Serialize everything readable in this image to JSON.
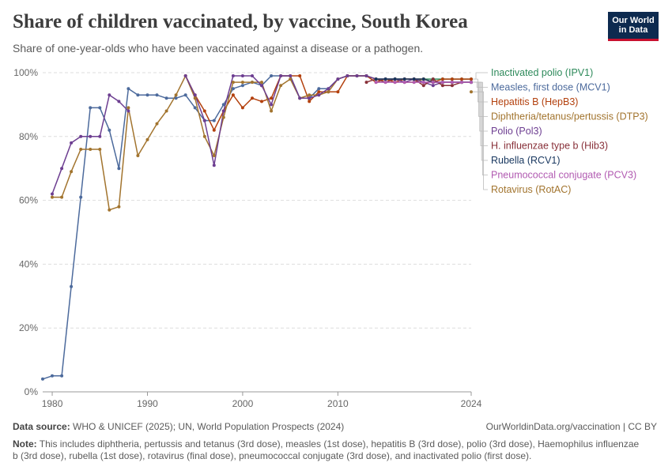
{
  "header": {
    "title": "Share of children vaccinated, by vaccine, South Korea",
    "subtitle": "Share of one-year-olds who have been vaccinated against a disease or a pathogen.",
    "logo_line1": "Our World",
    "logo_line2": "in Data"
  },
  "footer": {
    "source_label": "Data source:",
    "source_text": "WHO & UNICEF (2025); UN, World Population Prospects (2024)",
    "license": "OurWorldinData.org/vaccination | CC BY",
    "note_label": "Note:",
    "note_text": "This includes diphtheria, pertussis and tetanus (3rd dose), measles (1st dose), hepatitis B (3rd dose), polio (3rd dose), Haemophilus influenzae b (3rd dose), rubella (1st dose), rotavirus (final dose), pneumococcal conjugate (3rd dose), and inactivated polio (first dose)."
  },
  "chart_data": {
    "type": "line",
    "xlim": [
      1979,
      2024
    ],
    "ylim": [
      0,
      100
    ],
    "x_ticks": [
      "1980",
      "1990",
      "2000",
      "2010",
      "2024"
    ],
    "x_tick_values": [
      1980,
      1990,
      2000,
      2010,
      2024
    ],
    "y_ticks": [
      "0%",
      "20%",
      "40%",
      "60%",
      "80%",
      "100%"
    ],
    "y_tick_values": [
      0,
      20,
      40,
      60,
      80,
      100
    ],
    "grid": "horizontal dashed",
    "legend_placement": "right",
    "series": [
      {
        "name": "Inactivated polio (IPV1)",
        "color": "#2e8a5b",
        "points": [
          [
            2015,
            98
          ],
          [
            2016,
            98
          ],
          [
            2017,
            98
          ],
          [
            2018,
            98
          ],
          [
            2019,
            98
          ],
          [
            2020,
            98
          ],
          [
            2021,
            98
          ],
          [
            2022,
            98
          ],
          [
            2023,
            98
          ],
          [
            2024,
            98
          ]
        ]
      },
      {
        "name": "Measles, first dose (MCV1)",
        "color": "#4c6a9c",
        "points": [
          [
            1979,
            4
          ],
          [
            1980,
            5
          ],
          [
            1981,
            5
          ],
          [
            1982,
            33
          ],
          [
            1983,
            61
          ],
          [
            1984,
            89
          ],
          [
            1985,
            89
          ],
          [
            1986,
            82
          ],
          [
            1987,
            70
          ],
          [
            1988,
            95
          ],
          [
            1989,
            93
          ],
          [
            1990,
            93
          ],
          [
            1991,
            93
          ],
          [
            1992,
            92
          ],
          [
            1993,
            92
          ],
          [
            1994,
            93
          ],
          [
            1995,
            89
          ],
          [
            1996,
            85
          ],
          [
            1997,
            85
          ],
          [
            1998,
            90
          ],
          [
            1999,
            95
          ],
          [
            2000,
            96
          ],
          [
            2001,
            97
          ],
          [
            2002,
            96
          ],
          [
            2003,
            99
          ],
          [
            2004,
            99
          ],
          [
            2005,
            99
          ],
          [
            2006,
            92
          ],
          [
            2007,
            92
          ],
          [
            2008,
            95
          ],
          [
            2009,
            95
          ],
          [
            2010,
            98
          ],
          [
            2011,
            99
          ],
          [
            2012,
            99
          ],
          [
            2013,
            99
          ],
          [
            2014,
            98
          ],
          [
            2015,
            98
          ],
          [
            2016,
            98
          ],
          [
            2017,
            98
          ],
          [
            2018,
            98
          ],
          [
            2019,
            98
          ],
          [
            2020,
            97
          ],
          [
            2021,
            97
          ],
          [
            2022,
            97
          ],
          [
            2023,
            97
          ],
          [
            2024,
            97
          ]
        ]
      },
      {
        "name": "Hepatitis B (HepB3)",
        "color": "#b3410e",
        "points": [
          [
            1994,
            99
          ],
          [
            1995,
            93
          ],
          [
            1996,
            88
          ],
          [
            1997,
            82
          ],
          [
            1998,
            88
          ],
          [
            1999,
            93
          ],
          [
            2000,
            89
          ],
          [
            2001,
            92
          ],
          [
            2002,
            91
          ],
          [
            2003,
            92
          ],
          [
            2004,
            99
          ],
          [
            2005,
            99
          ],
          [
            2006,
            99
          ],
          [
            2007,
            91
          ],
          [
            2008,
            94
          ],
          [
            2009,
            94
          ],
          [
            2010,
            94
          ],
          [
            2011,
            99
          ],
          [
            2012,
            99
          ],
          [
            2013,
            99
          ],
          [
            2014,
            97
          ],
          [
            2015,
            98
          ],
          [
            2016,
            97
          ],
          [
            2017,
            98
          ],
          [
            2018,
            98
          ],
          [
            2019,
            98
          ],
          [
            2020,
            97
          ],
          [
            2021,
            98
          ],
          [
            2022,
            98
          ],
          [
            2023,
            98
          ],
          [
            2024,
            98
          ]
        ]
      },
      {
        "name": "Diphtheria/tetanus/pertussis (DTP3)",
        "color": "#a2742e",
        "points": [
          [
            1980,
            61
          ],
          [
            1981,
            61
          ],
          [
            1982,
            69
          ],
          [
            1983,
            76
          ],
          [
            1984,
            76
          ],
          [
            1985,
            76
          ],
          [
            1986,
            57
          ],
          [
            1987,
            58
          ],
          [
            1988,
            89
          ],
          [
            1989,
            74
          ],
          [
            1990,
            79
          ],
          [
            1991,
            84
          ],
          [
            1992,
            88
          ],
          [
            1993,
            93
          ],
          [
            1994,
            99
          ],
          [
            1995,
            92
          ],
          [
            1996,
            80
          ],
          [
            1997,
            74
          ],
          [
            1998,
            86
          ],
          [
            1999,
            97
          ],
          [
            2000,
            97
          ],
          [
            2001,
            97
          ],
          [
            2002,
            97
          ],
          [
            2003,
            88
          ],
          [
            2004,
            96
          ],
          [
            2005,
            98
          ],
          [
            2006,
            92
          ],
          [
            2007,
            93
          ],
          [
            2008,
            93
          ],
          [
            2009,
            94
          ],
          [
            2010,
            98
          ],
          [
            2011,
            99
          ],
          [
            2012,
            99
          ],
          [
            2013,
            99
          ],
          [
            2014,
            98
          ],
          [
            2015,
            98
          ],
          [
            2016,
            98
          ],
          [
            2017,
            97
          ],
          [
            2018,
            97
          ],
          [
            2019,
            98
          ],
          [
            2020,
            97
          ],
          [
            2021,
            97
          ],
          [
            2022,
            97
          ],
          [
            2023,
            97
          ],
          [
            2024,
            97
          ]
        ]
      },
      {
        "name": "Polio (Pol3)",
        "color": "#6d3e91",
        "points": [
          [
            1980,
            62
          ],
          [
            1981,
            70
          ],
          [
            1982,
            78
          ],
          [
            1983,
            80
          ],
          [
            1984,
            80
          ],
          [
            1985,
            80
          ],
          [
            1986,
            93
          ],
          [
            1987,
            91
          ],
          [
            1988,
            88
          ],
          [
            1994,
            99
          ],
          [
            1995,
            93
          ],
          [
            1996,
            85
          ],
          [
            1997,
            71
          ],
          [
            1998,
            88
          ],
          [
            1999,
            99
          ],
          [
            2000,
            99
          ],
          [
            2001,
            99
          ],
          [
            2002,
            96
          ],
          [
            2003,
            90
          ],
          [
            2004,
            99
          ],
          [
            2005,
            99
          ],
          [
            2006,
            92
          ],
          [
            2007,
            92
          ],
          [
            2008,
            93
          ],
          [
            2009,
            95
          ],
          [
            2010,
            98
          ],
          [
            2011,
            99
          ],
          [
            2012,
            99
          ],
          [
            2013,
            99
          ],
          [
            2014,
            98
          ],
          [
            2015,
            98
          ],
          [
            2016,
            98
          ],
          [
            2017,
            97
          ],
          [
            2018,
            98
          ],
          [
            2019,
            97
          ],
          [
            2020,
            96
          ],
          [
            2021,
            97
          ],
          [
            2022,
            97
          ],
          [
            2023,
            97
          ],
          [
            2024,
            97
          ]
        ]
      },
      {
        "name": "H. influenzae type b (Hib3)",
        "color": "#883039",
        "points": [
          [
            2013,
            97
          ],
          [
            2014,
            98
          ],
          [
            2015,
            97
          ],
          [
            2016,
            98
          ],
          [
            2017,
            98
          ],
          [
            2018,
            98
          ],
          [
            2019,
            96
          ],
          [
            2020,
            98
          ],
          [
            2021,
            96
          ],
          [
            2022,
            96
          ],
          [
            2023,
            97
          ]
        ]
      },
      {
        "name": "Rubella (RCV1)",
        "color": "#18375f",
        "points": [
          [
            2014,
            98
          ],
          [
            2015,
            98
          ],
          [
            2016,
            98
          ],
          [
            2017,
            98
          ],
          [
            2018,
            98
          ],
          [
            2019,
            98
          ],
          [
            2020,
            97
          ],
          [
            2021,
            97
          ],
          [
            2022,
            97
          ],
          [
            2023,
            97
          ],
          [
            2024,
            97
          ]
        ]
      },
      {
        "name": "Pneumococcal conjugate (PCV3)",
        "color": "#b15ab1",
        "points": [
          [
            2014,
            97
          ],
          [
            2015,
            97
          ],
          [
            2016,
            97
          ],
          [
            2017,
            97
          ],
          [
            2018,
            97
          ],
          [
            2019,
            97
          ],
          [
            2020,
            97
          ],
          [
            2021,
            97
          ],
          [
            2022,
            97
          ],
          [
            2023,
            97
          ],
          [
            2024,
            97
          ]
        ]
      },
      {
        "name": "Rotavirus (RotAC)",
        "color": "#a2742e",
        "points": [
          [
            2024,
            94
          ]
        ]
      }
    ]
  }
}
